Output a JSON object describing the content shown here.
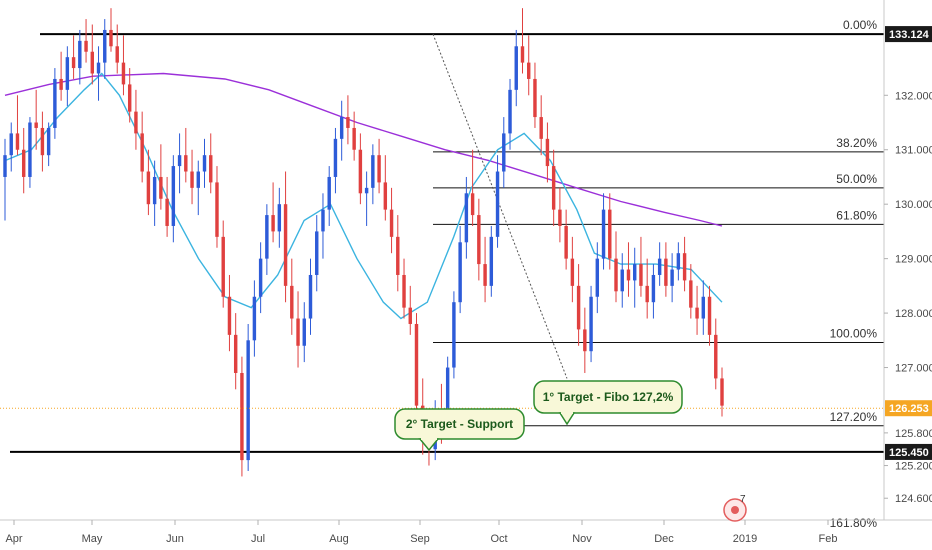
{
  "chart_data": {
    "type": "candlestick",
    "x_axis": {
      "tick_labels": [
        "Apr",
        "May",
        "Jun",
        "Jul",
        "Aug",
        "Sep",
        "Oct",
        "Nov",
        "Dec",
        "2019",
        "Feb"
      ]
    },
    "y_axis": {
      "range": [
        124.2,
        133.75
      ],
      "tick_labels": [
        "124.600",
        "125.200",
        "125.800",
        "127.000",
        "128.000",
        "129.000",
        "130.000",
        "131.000",
        "132.000"
      ]
    },
    "price_tags": [
      {
        "value": "133.124",
        "color": "#1a1a1a"
      },
      {
        "value": "126.253",
        "color": "#f5a623"
      },
      {
        "value": "125.450",
        "color": "#1a1a1a"
      }
    ],
    "horizontal_levels": [
      {
        "price": 133.124,
        "color": "#000000"
      },
      {
        "price": 125.45,
        "color": "#000000"
      }
    ],
    "fibonacci_levels": [
      {
        "label": "0.00%",
        "price": 133.124
      },
      {
        "label": "38.20%",
        "price": 130.96
      },
      {
        "label": "50.00%",
        "price": 130.3
      },
      {
        "label": "61.80%",
        "price": 129.63
      },
      {
        "label": "100.00%",
        "price": 127.46
      },
      {
        "label": "127.20%",
        "price": 125.93
      },
      {
        "label": "161.80%",
        "price": 123.98
      }
    ],
    "current_price": 126.253,
    "callouts": [
      {
        "text": "1° Target - Fibo 127,2%"
      },
      {
        "text": "2° Target - Support"
      }
    ],
    "candles": [
      [
        130.5,
        131.2,
        129.7,
        130.9
      ],
      [
        130.9,
        131.5,
        130.6,
        131.3
      ],
      [
        131.3,
        132.0,
        130.9,
        131.0
      ],
      [
        131.0,
        131.4,
        130.2,
        130.5
      ],
      [
        130.5,
        131.6,
        130.3,
        131.5
      ],
      [
        131.5,
        132.1,
        131.0,
        131.4
      ],
      [
        131.4,
        131.7,
        130.6,
        130.9
      ],
      [
        130.9,
        131.5,
        130.7,
        131.4
      ],
      [
        131.4,
        132.5,
        131.2,
        132.3
      ],
      [
        132.3,
        132.8,
        131.9,
        132.1
      ],
      [
        132.1,
        132.9,
        131.8,
        132.7
      ],
      [
        132.7,
        133.1,
        132.3,
        132.5
      ],
      [
        132.5,
        133.2,
        132.2,
        133.0
      ],
      [
        133.0,
        133.4,
        132.6,
        132.8
      ],
      [
        132.8,
        133.3,
        132.2,
        132.4
      ],
      [
        132.4,
        132.9,
        131.9,
        132.6
      ],
      [
        132.6,
        133.4,
        132.3,
        133.2
      ],
      [
        133.2,
        133.6,
        132.8,
        132.9
      ],
      [
        132.9,
        133.3,
        132.4,
        132.6
      ],
      [
        132.6,
        133.1,
        132.0,
        132.2
      ],
      [
        132.2,
        132.5,
        131.5,
        131.7
      ],
      [
        131.7,
        132.1,
        131.0,
        131.3
      ],
      [
        131.3,
        131.7,
        130.4,
        130.6
      ],
      [
        130.6,
        131.0,
        129.8,
        130.0
      ],
      [
        130.0,
        130.8,
        129.6,
        130.5
      ],
      [
        130.5,
        131.1,
        129.9,
        130.1
      ],
      [
        130.1,
        130.5,
        129.4,
        129.6
      ],
      [
        129.6,
        130.9,
        129.3,
        130.7
      ],
      [
        130.7,
        131.3,
        130.2,
        130.9
      ],
      [
        130.9,
        131.4,
        130.4,
        130.6
      ],
      [
        130.6,
        131.0,
        130.0,
        130.3
      ],
      [
        130.3,
        130.8,
        129.8,
        130.6
      ],
      [
        130.6,
        131.2,
        130.3,
        130.9
      ],
      [
        130.9,
        131.3,
        130.2,
        130.4
      ],
      [
        130.4,
        130.7,
        129.2,
        129.4
      ],
      [
        129.4,
        129.7,
        128.1,
        128.3
      ],
      [
        128.3,
        128.7,
        127.3,
        127.6
      ],
      [
        127.6,
        128.0,
        126.6,
        126.9
      ],
      [
        126.9,
        127.2,
        125.0,
        125.3
      ],
      [
        125.3,
        127.8,
        125.1,
        127.5
      ],
      [
        127.5,
        128.6,
        127.2,
        128.3
      ],
      [
        128.3,
        129.3,
        128.0,
        129.0
      ],
      [
        129.0,
        130.0,
        128.7,
        129.8
      ],
      [
        129.8,
        130.4,
        129.3,
        129.5
      ],
      [
        129.5,
        130.3,
        129.2,
        130.0
      ],
      [
        130.0,
        130.6,
        128.2,
        128.5
      ],
      [
        128.5,
        129.0,
        127.6,
        127.9
      ],
      [
        127.9,
        128.4,
        127.0,
        127.4
      ],
      [
        127.4,
        128.2,
        127.1,
        127.9
      ],
      [
        127.9,
        129.0,
        127.6,
        128.7
      ],
      [
        128.7,
        129.8,
        128.4,
        129.5
      ],
      [
        129.5,
        130.2,
        129.0,
        129.9
      ],
      [
        129.9,
        130.7,
        129.6,
        130.5
      ],
      [
        130.5,
        131.4,
        130.2,
        131.2
      ],
      [
        131.2,
        131.9,
        130.8,
        131.6
      ],
      [
        131.6,
        132.0,
        131.1,
        131.4
      ],
      [
        131.4,
        131.7,
        130.8,
        131.0
      ],
      [
        131.0,
        131.3,
        130.0,
        130.2
      ],
      [
        130.2,
        130.6,
        129.6,
        130.3
      ],
      [
        130.3,
        131.1,
        130.0,
        130.9
      ],
      [
        130.9,
        131.2,
        130.2,
        130.4
      ],
      [
        130.4,
        130.9,
        129.7,
        129.9
      ],
      [
        129.9,
        130.3,
        129.1,
        129.4
      ],
      [
        129.4,
        129.8,
        128.4,
        128.7
      ],
      [
        128.7,
        129.0,
        127.9,
        128.1
      ],
      [
        128.1,
        128.5,
        127.6,
        127.8
      ],
      [
        127.8,
        128.0,
        126.1,
        126.3
      ],
      [
        126.3,
        126.8,
        125.4,
        125.7
      ],
      [
        125.7,
        126.2,
        125.2,
        125.5
      ],
      [
        125.5,
        126.4,
        125.3,
        126.1
      ],
      [
        126.1,
        126.7,
        125.6,
        125.8
      ],
      [
        125.8,
        127.2,
        125.7,
        127.0
      ],
      [
        127.0,
        128.4,
        126.8,
        128.2
      ],
      [
        128.2,
        129.6,
        128.0,
        129.3
      ],
      [
        129.3,
        130.5,
        129.0,
        130.2
      ],
      [
        130.2,
        131.0,
        129.6,
        129.8
      ],
      [
        129.8,
        130.1,
        128.6,
        128.9
      ],
      [
        128.9,
        129.4,
        128.2,
        128.5
      ],
      [
        128.5,
        129.6,
        128.3,
        129.4
      ],
      [
        129.4,
        130.9,
        129.2,
        130.6
      ],
      [
        130.6,
        131.6,
        130.3,
        131.3
      ],
      [
        131.3,
        132.3,
        131.0,
        132.1
      ],
      [
        132.1,
        133.2,
        131.8,
        132.9
      ],
      [
        132.9,
        133.6,
        132.4,
        132.6
      ],
      [
        132.6,
        133.1,
        132.0,
        132.3
      ],
      [
        132.3,
        132.6,
        131.4,
        131.6
      ],
      [
        131.6,
        132.0,
        130.9,
        131.2
      ],
      [
        131.2,
        131.5,
        130.4,
        130.7
      ],
      [
        130.7,
        131.0,
        129.6,
        129.9
      ],
      [
        129.9,
        130.3,
        129.3,
        129.6
      ],
      [
        129.6,
        129.9,
        128.8,
        129.0
      ],
      [
        129.0,
        129.4,
        128.2,
        128.5
      ],
      [
        128.5,
        128.9,
        127.4,
        127.7
      ],
      [
        127.7,
        128.1,
        126.9,
        127.3
      ],
      [
        127.3,
        128.5,
        127.1,
        128.3
      ],
      [
        128.3,
        129.3,
        128.0,
        129.0
      ],
      [
        129.0,
        130.2,
        128.8,
        129.9
      ],
      [
        129.9,
        130.2,
        128.8,
        129.0
      ],
      [
        129.0,
        129.5,
        128.2,
        128.4
      ],
      [
        128.4,
        129.1,
        128.1,
        128.8
      ],
      [
        128.8,
        129.3,
        128.3,
        128.6
      ],
      [
        128.6,
        129.2,
        128.1,
        128.9
      ],
      [
        128.9,
        129.4,
        128.3,
        128.5
      ],
      [
        128.5,
        129.0,
        127.9,
        128.2
      ],
      [
        128.2,
        128.9,
        127.9,
        128.7
      ],
      [
        128.7,
        129.3,
        128.5,
        129.0
      ],
      [
        129.0,
        129.3,
        128.3,
        128.5
      ],
      [
        128.5,
        129.1,
        128.2,
        128.8
      ],
      [
        128.8,
        129.3,
        128.6,
        129.1
      ],
      [
        129.1,
        129.4,
        128.4,
        128.6
      ],
      [
        128.6,
        128.9,
        127.9,
        128.1
      ],
      [
        128.1,
        128.5,
        127.6,
        127.9
      ],
      [
        127.9,
        128.6,
        127.6,
        128.3
      ],
      [
        128.3,
        128.5,
        127.4,
        127.6
      ],
      [
        127.6,
        127.9,
        126.6,
        126.8
      ],
      [
        126.8,
        127.0,
        126.1,
        126.3
      ]
    ],
    "moving_averages": [
      {
        "color": "#9b30d9",
        "points": [
          [
            0,
            132.0
          ],
          [
            0.05,
            132.2
          ],
          [
            0.1,
            132.35
          ],
          [
            0.18,
            132.4
          ],
          [
            0.25,
            132.3
          ],
          [
            0.3,
            132.1
          ],
          [
            0.35,
            131.8
          ],
          [
            0.4,
            131.5
          ],
          [
            0.45,
            131.25
          ],
          [
            0.5,
            131.0
          ],
          [
            0.55,
            130.8
          ],
          [
            0.6,
            130.55
          ],
          [
            0.65,
            130.3
          ],
          [
            0.7,
            130.05
          ],
          [
            0.75,
            129.85
          ],
          [
            0.79,
            129.7
          ],
          [
            0.815,
            129.6
          ]
        ]
      },
      {
        "color": "#3bb4e0",
        "points": [
          [
            0,
            130.8
          ],
          [
            0.03,
            131.0
          ],
          [
            0.06,
            131.6
          ],
          [
            0.09,
            132.1
          ],
          [
            0.11,
            132.4
          ],
          [
            0.13,
            132.0
          ],
          [
            0.16,
            131.0
          ],
          [
            0.19,
            129.9
          ],
          [
            0.22,
            129.0
          ],
          [
            0.25,
            128.3
          ],
          [
            0.28,
            128.1
          ],
          [
            0.31,
            128.7
          ],
          [
            0.34,
            129.7
          ],
          [
            0.37,
            130.0
          ],
          [
            0.4,
            129.0
          ],
          [
            0.43,
            128.2
          ],
          [
            0.45,
            127.9
          ],
          [
            0.48,
            128.2
          ],
          [
            0.51,
            129.4
          ],
          [
            0.53,
            130.3
          ],
          [
            0.56,
            131.0
          ],
          [
            0.59,
            131.3
          ],
          [
            0.62,
            130.8
          ],
          [
            0.65,
            129.9
          ],
          [
            0.67,
            129.1
          ],
          [
            0.7,
            128.9
          ],
          [
            0.74,
            128.9
          ],
          [
            0.78,
            128.8
          ],
          [
            0.815,
            128.2
          ]
        ]
      }
    ],
    "fib_dashed_line": {
      "from": 133.124,
      "to": 126.8
    }
  }
}
